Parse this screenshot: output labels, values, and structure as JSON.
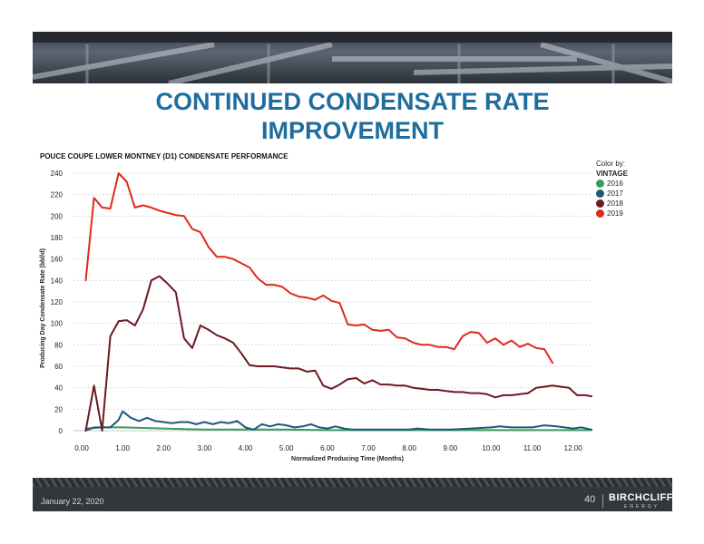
{
  "slide": {
    "title_line1": "CONTINUED CONDENSATE RATE",
    "title_line2": "IMPROVEMENT",
    "date": "January 22, 2020",
    "page_number": "40",
    "logo_text": "BIRCHCLIFF",
    "logo_subtext": "ENERGY"
  },
  "colors": {
    "title": "#1f6d9f",
    "2016": "#3a9a5c",
    "2017": "#1e5a78",
    "2018": "#6b1a1f",
    "2019": "#e0281e"
  },
  "chart_data": {
    "type": "line",
    "title": "POUCE COUPE LOWER MONTNEY (D1) CONDENSATE PERFORMANCE",
    "xlabel": "Normalized Producing Time (Months)",
    "ylabel": "Producing Day Condensate Rate (bbl/d)",
    "xlim": [
      -0.2,
      12.45
    ],
    "ylim": [
      0,
      240
    ],
    "xticks": [
      "0.00",
      "1.00",
      "2.00",
      "3.00",
      "4.00",
      "5.00",
      "6.00",
      "7.00",
      "8.00",
      "9.00",
      "10.00",
      "11.00",
      "12.00"
    ],
    "yticks": [
      "0",
      "20",
      "40",
      "60",
      "80",
      "100",
      "120",
      "140",
      "160",
      "180",
      "200",
      "220",
      "240"
    ],
    "grid": true,
    "legend": {
      "title": "Color by:",
      "subtitle": "VINTAGE",
      "position": "top-right"
    },
    "series": [
      {
        "name": "2016",
        "color": "#3a9a5c",
        "x": [
          0.1,
          0.5,
          1.0,
          1.5,
          2.0,
          2.5,
          3.0,
          4.0,
          5.0,
          6.0,
          7.0,
          8.0,
          9.0,
          10.0,
          11.0,
          12.0,
          12.45
        ],
        "y": [
          2,
          3,
          3,
          2.5,
          2,
          1.5,
          1,
          1,
          1,
          0.5,
          0.5,
          0.5,
          0.5,
          0.5,
          0.5,
          0.5,
          0.5
        ]
      },
      {
        "name": "2017",
        "color": "#1e5a78",
        "x": [
          0.1,
          0.3,
          0.5,
          0.7,
          0.9,
          1.0,
          1.2,
          1.4,
          1.6,
          1.8,
          2.0,
          2.2,
          2.4,
          2.6,
          2.8,
          3.0,
          3.2,
          3.4,
          3.6,
          3.8,
          4.0,
          4.2,
          4.4,
          4.6,
          4.8,
          5.0,
          5.2,
          5.4,
          5.6,
          5.8,
          6.0,
          6.2,
          6.4,
          6.6,
          6.8,
          7.0,
          7.5,
          8.0,
          8.2,
          8.5,
          9.0,
          9.5,
          10.0,
          10.2,
          10.5,
          11.0,
          11.3,
          11.6,
          12.0,
          12.2,
          12.45
        ],
        "y": [
          0,
          3,
          3,
          3,
          10,
          18,
          12,
          9,
          12,
          9,
          8,
          7,
          8,
          8,
          6,
          8,
          6,
          8,
          7,
          9,
          3,
          1,
          6,
          4,
          6,
          5,
          3,
          4,
          6,
          3,
          2,
          4,
          2,
          1,
          1,
          1,
          1,
          1,
          2,
          1,
          1,
          2,
          3,
          4,
          3,
          3,
          5,
          4,
          2,
          3,
          1
        ]
      },
      {
        "name": "2018",
        "color": "#6b1a1f",
        "x": [
          0.1,
          0.3,
          0.5,
          0.7,
          0.9,
          1.1,
          1.3,
          1.5,
          1.7,
          1.9,
          2.1,
          2.3,
          2.5,
          2.7,
          2.9,
          3.1,
          3.3,
          3.5,
          3.7,
          3.9,
          4.1,
          4.3,
          4.5,
          4.7,
          4.9,
          5.1,
          5.3,
          5.5,
          5.7,
          5.9,
          6.1,
          6.3,
          6.5,
          6.7,
          6.9,
          7.1,
          7.3,
          7.5,
          7.7,
          7.9,
          8.1,
          8.3,
          8.5,
          8.7,
          8.9,
          9.1,
          9.3,
          9.5,
          9.7,
          9.9,
          10.1,
          10.3,
          10.5,
          10.7,
          10.9,
          11.1,
          11.3,
          11.5,
          11.7,
          11.9,
          12.1,
          12.3,
          12.45
        ],
        "y": [
          0,
          42,
          0,
          88,
          102,
          103,
          98,
          113,
          140,
          144,
          137,
          129,
          86,
          77,
          98,
          94,
          89,
          86,
          82,
          72,
          61,
          60,
          60,
          60,
          59,
          58,
          58,
          55,
          56,
          42,
          39,
          43,
          48,
          49,
          44,
          47,
          43,
          43,
          42,
          42,
          40,
          39,
          38,
          38,
          37,
          36,
          36,
          35,
          35,
          34,
          31,
          33,
          33,
          34,
          35,
          40,
          41,
          42,
          41,
          40,
          33,
          33,
          32
        ]
      },
      {
        "name": "2019",
        "color": "#e0281e",
        "x": [
          0.1,
          0.3,
          0.5,
          0.7,
          0.9,
          1.1,
          1.3,
          1.5,
          1.7,
          1.9,
          2.1,
          2.3,
          2.5,
          2.7,
          2.9,
          3.1,
          3.3,
          3.5,
          3.7,
          3.9,
          4.1,
          4.3,
          4.5,
          4.7,
          4.9,
          5.1,
          5.3,
          5.5,
          5.7,
          5.9,
          6.1,
          6.3,
          6.5,
          6.7,
          6.9,
          7.1,
          7.3,
          7.5,
          7.7,
          7.9,
          8.1,
          8.3,
          8.5,
          8.7,
          8.9,
          9.1,
          9.3,
          9.5,
          9.7,
          9.9,
          10.1,
          10.3,
          10.5,
          10.7,
          10.9,
          11.1,
          11.3,
          11.5
        ],
        "y": [
          140,
          217,
          208,
          207,
          240,
          232,
          208,
          210,
          208,
          205,
          203,
          201,
          200,
          188,
          185,
          171,
          162,
          162,
          160,
          156,
          152,
          142,
          136,
          136,
          134,
          128,
          125,
          124,
          122,
          126,
          121,
          119,
          99,
          98,
          99,
          94,
          93,
          94,
          87,
          86,
          82,
          80,
          80,
          78,
          78,
          76,
          88,
          92,
          91,
          82,
          86,
          80,
          84,
          78,
          81,
          77,
          76,
          63
        ]
      }
    ]
  }
}
